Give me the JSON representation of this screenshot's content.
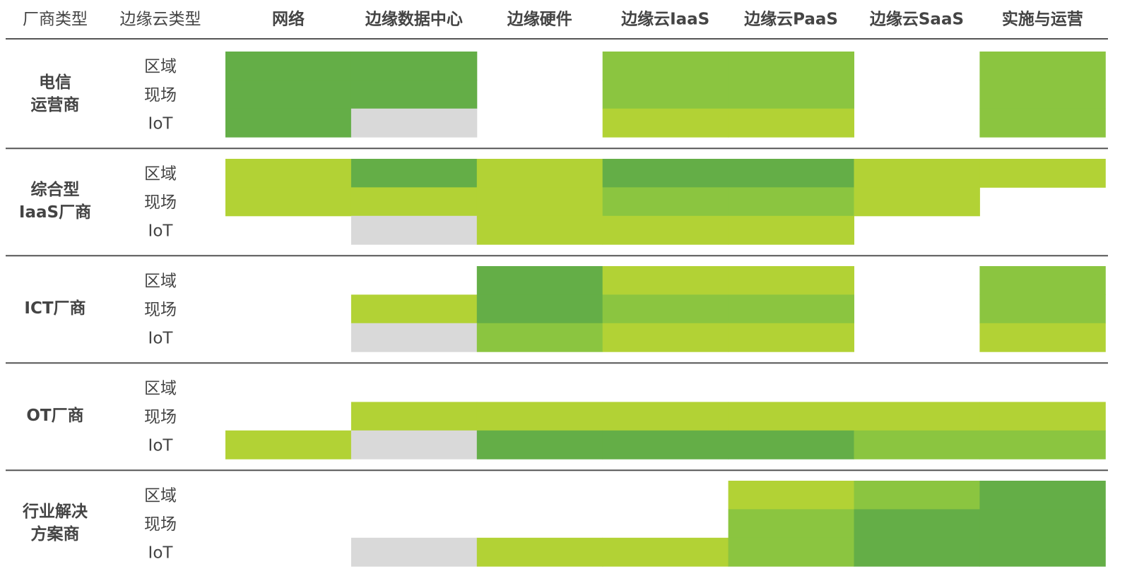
{
  "header": {
    "labels": [
      "厂商类型",
      "边缘云类型",
      "网络",
      "边缘数据中心",
      "边缘硬件",
      "边缘云IaaS",
      "边缘云PaaS",
      "边缘云SaaS",
      "实施与运营"
    ]
  },
  "groups": [
    {
      "name": [
        "电信",
        "运营商"
      ],
      "rows": [
        {
          "label": "区域",
          "cells": [
            "#64ae47",
            "#64ae47",
            null,
            "#8bc540",
            "#8bc540",
            null,
            "#8bc540"
          ]
        },
        {
          "label": "现场",
          "cells": [
            "#64ae47",
            "#64ae47",
            null,
            "#8bc540",
            "#8bc540",
            null,
            "#8bc540"
          ]
        },
        {
          "label": "IoT",
          "cells": [
            "#64ae47",
            "#d9d9d9",
            null,
            "#b2d235",
            "#b2d235",
            null,
            "#8bc540"
          ]
        }
      ]
    },
    {
      "name": [
        "综合型",
        "IaaS厂商"
      ],
      "rows": [
        {
          "label": "区域",
          "cells": [
            "#b2d235",
            "#64ae47",
            "#b2d235",
            "#64ae47",
            "#64ae47",
            "#b2d235",
            "#b2d235"
          ]
        },
        {
          "label": "现场",
          "cells": [
            "#b2d235",
            "#b2d235",
            "#b2d235",
            "#8bc540",
            "#8bc540",
            "#b2d235",
            null
          ]
        },
        {
          "label": "IoT",
          "cells": [
            null,
            "#d9d9d9",
            "#b2d235",
            "#b2d235",
            "#b2d235",
            null,
            null
          ]
        }
      ]
    },
    {
      "name": [
        "ICT厂商"
      ],
      "rows": [
        {
          "label": "区域",
          "cells": [
            null,
            null,
            "#64ae47",
            "#b2d235",
            "#b2d235",
            null,
            "#8bc540"
          ]
        },
        {
          "label": "现场",
          "cells": [
            null,
            "#b2d235",
            "#64ae47",
            "#8bc540",
            "#8bc540",
            null,
            "#8bc540"
          ]
        },
        {
          "label": "IoT",
          "cells": [
            null,
            "#d9d9d9",
            "#8bc540",
            "#b2d235",
            "#b2d235",
            null,
            "#b2d235"
          ]
        }
      ]
    },
    {
      "name": [
        "OT厂商"
      ],
      "rows": [
        {
          "label": "区域",
          "cells": [
            null,
            null,
            null,
            null,
            null,
            null,
            null
          ]
        },
        {
          "label": "现场",
          "cells": [
            null,
            "#b2d235",
            "#b2d235",
            "#b2d235",
            "#b2d235",
            "#b2d235",
            "#b2d235"
          ]
        },
        {
          "label": "IoT",
          "cells": [
            "#b2d235",
            "#d9d9d9",
            "#64ae47",
            "#64ae47",
            "#64ae47",
            "#8bc540",
            "#8bc540"
          ]
        }
      ]
    },
    {
      "name": [
        "行业解决",
        "方案商"
      ],
      "rows": [
        {
          "label": "区域",
          "cells": [
            null,
            null,
            null,
            null,
            "#b2d235",
            "#8bc540",
            "#64ae47"
          ]
        },
        {
          "label": "现场",
          "cells": [
            null,
            null,
            null,
            null,
            "#8bc540",
            "#64ae47",
            "#64ae47"
          ]
        },
        {
          "label": "IoT",
          "cells": [
            null,
            "#d9d9d9",
            "#b2d235",
            "#b2d235",
            "#8bc540",
            "#64ae47",
            "#64ae47"
          ]
        }
      ]
    }
  ]
}
